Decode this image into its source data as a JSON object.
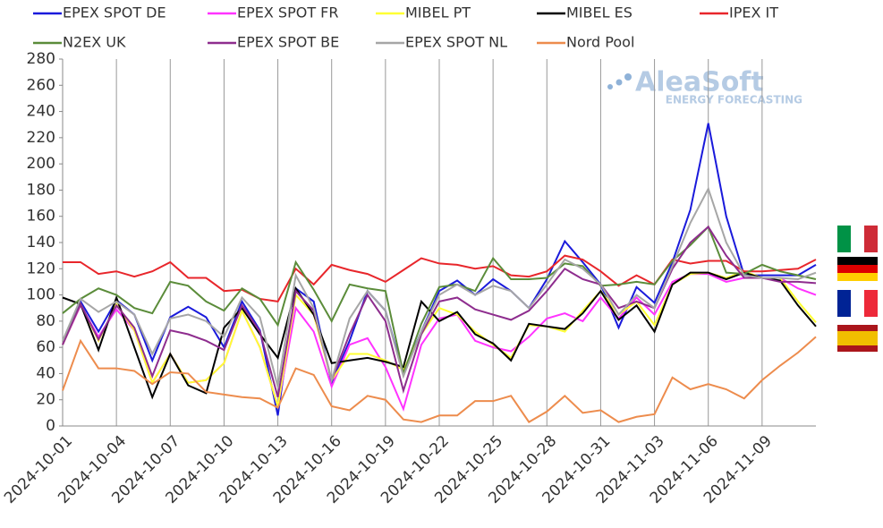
{
  "chart_data": {
    "type": "line",
    "logo": {
      "name": "AleaSoft",
      "tagline": "ENERGY FORECASTING"
    },
    "categories": [
      "2024-10-01",
      null,
      null,
      "2024-10-04",
      null,
      null,
      "2024-10-07",
      null,
      null,
      "2024-10-10",
      null,
      null,
      "2024-10-13",
      null,
      null,
      "2024-10-16",
      null,
      null,
      "2024-10-19",
      null,
      null,
      "2024-10-22",
      null,
      null,
      "2024-10-25",
      null,
      null,
      "2024-10-28",
      null,
      null,
      "2024-10-31",
      null,
      null,
      "2024-11-03",
      null,
      null,
      "2024-11-06",
      null,
      null,
      "2024-11-09",
      null,
      null,
      null
    ],
    "ylim": [
      0,
      280
    ],
    "yticks": [
      0,
      20,
      40,
      60,
      80,
      100,
      120,
      140,
      160,
      180,
      200,
      220,
      240,
      260,
      280
    ],
    "series": [
      {
        "name": "EPEX SPOT DE",
        "color": "#1a1adb",
        "values": [
          62,
          95,
          72,
          96,
          85,
          50,
          83,
          91,
          83,
          60,
          95,
          73,
          8,
          105,
          95,
          33,
          65,
          103,
          88,
          40,
          72,
          103,
          111,
          100,
          112,
          103,
          90,
          112,
          141,
          125,
          108,
          75,
          106,
          94,
          125,
          165,
          231,
          160,
          115,
          115,
          115,
          115,
          123
        ]
      },
      {
        "name": "EPEX SPOT FR",
        "color": "#ff33ff",
        "values": [
          62,
          92,
          68,
          89,
          73,
          33,
          55,
          33,
          35,
          48,
          88,
          60,
          15,
          90,
          72,
          30,
          62,
          67,
          45,
          13,
          62,
          82,
          85,
          65,
          60,
          57,
          68,
          82,
          86,
          80,
          98,
          82,
          98,
          85,
          110,
          116,
          116,
          110,
          113,
          113,
          113,
          105,
          100
        ]
      },
      {
        "name": "MIBEL PT",
        "color": "#ffff33",
        "values": [
          62,
          93,
          65,
          93,
          73,
          33,
          55,
          33,
          35,
          48,
          88,
          60,
          15,
          100,
          85,
          35,
          55,
          55,
          50,
          43,
          70,
          90,
          85,
          72,
          62,
          52,
          77,
          76,
          72,
          88,
          103,
          85,
          95,
          77,
          108,
          116,
          117,
          113,
          118,
          113,
          113,
          95,
          79
        ]
      },
      {
        "name": "MIBEL ES",
        "color": "#000000",
        "values": [
          98,
          93,
          58,
          98,
          60,
          22,
          55,
          31,
          25,
          75,
          90,
          70,
          52,
          105,
          85,
          48,
          50,
          52,
          49,
          45,
          95,
          80,
          87,
          70,
          63,
          50,
          78,
          76,
          74,
          86,
          103,
          81,
          92,
          72,
          108,
          117,
          117,
          112,
          117,
          113,
          111,
          92,
          76
        ]
      },
      {
        "name": "IPEX IT",
        "color": "#e8262b",
        "values": [
          125,
          125,
          116,
          118,
          114,
          118,
          125,
          113,
          113,
          103,
          104,
          97,
          95,
          120,
          108,
          123,
          119,
          116,
          110,
          119,
          128,
          124,
          123,
          120,
          122,
          115,
          114,
          118,
          130,
          127,
          118,
          107,
          115,
          108,
          127,
          124,
          126,
          126,
          118,
          118,
          119,
          120,
          127
        ]
      },
      {
        "name": "N2EX UK",
        "color": "#5b8c3a",
        "values": [
          86,
          97,
          105,
          100,
          90,
          86,
          110,
          107,
          95,
          88,
          105,
          97,
          77,
          125,
          104,
          80,
          108,
          105,
          103,
          40,
          78,
          106,
          108,
          103,
          128,
          112,
          112,
          113,
          124,
          122,
          107,
          108,
          110,
          108,
          126,
          138,
          152,
          117,
          116,
          123,
          118,
          115,
          112
        ]
      },
      {
        "name": "EPEX SPOT BE",
        "color": "#8e2d8e",
        "values": [
          62,
          93,
          66,
          92,
          75,
          38,
          73,
          70,
          65,
          58,
          92,
          72,
          22,
          103,
          88,
          35,
          70,
          100,
          80,
          27,
          70,
          95,
          98,
          89,
          85,
          81,
          88,
          103,
          120,
          112,
          108,
          90,
          95,
          90,
          120,
          140,
          152,
          130,
          113,
          113,
          110,
          110,
          109
        ]
      },
      {
        "name": "EPEX SPOT NL",
        "color": "#a6a6a6",
        "values": [
          65,
          97,
          87,
          95,
          85,
          55,
          82,
          85,
          80,
          68,
          98,
          83,
          30,
          115,
          90,
          35,
          82,
          103,
          88,
          38,
          72,
          100,
          108,
          100,
          107,
          103,
          90,
          108,
          127,
          120,
          108,
          85,
          100,
          90,
          122,
          155,
          181,
          140,
          115,
          113,
          113,
          112,
          117
        ]
      },
      {
        "name": "Nord Pool",
        "color": "#ed8c4d",
        "values": [
          27,
          65,
          44,
          44,
          42,
          32,
          41,
          40,
          26,
          24,
          22,
          21,
          14,
          44,
          39,
          15,
          12,
          23,
          20,
          5,
          3,
          8,
          8,
          19,
          19,
          23,
          3,
          11,
          23,
          10,
          12,
          3,
          7,
          9,
          37,
          28,
          32,
          28,
          21,
          35,
          46,
          56,
          68
        ]
      }
    ]
  }
}
